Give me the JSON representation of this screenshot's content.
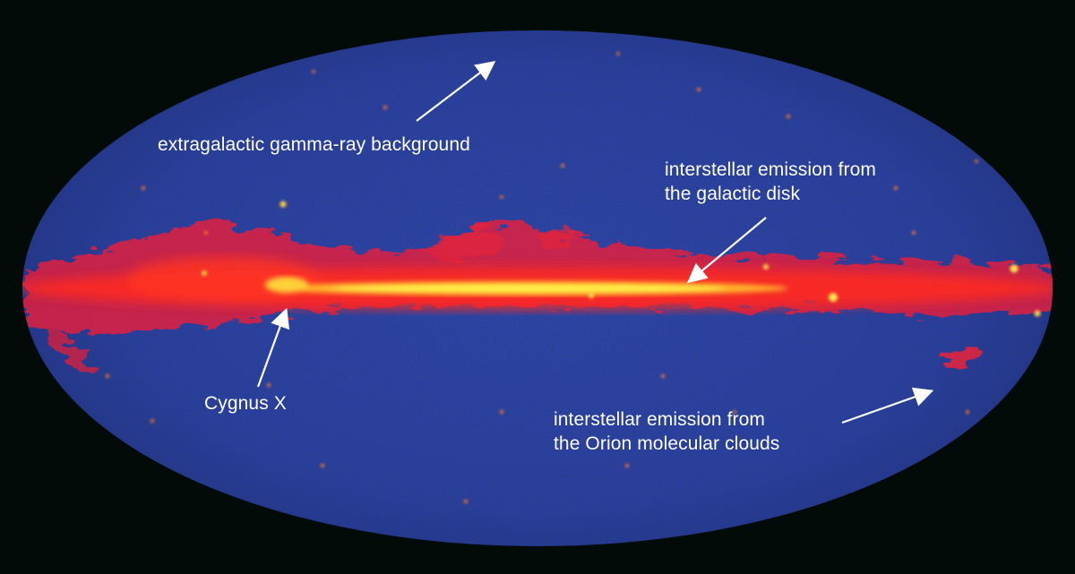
{
  "image": {
    "subject": "Fermi gamma-ray all-sky map",
    "colors": {
      "background": "#020b08",
      "sky_blue": "#2a3fa8",
      "disk_red": "#ff2a22",
      "disk_core": "#ffe53a",
      "label": "#ffffff"
    }
  },
  "annotations": {
    "extragalactic": {
      "text": "extragalactic gamma-ray background"
    },
    "disk": {
      "line1": "interstellar emission from",
      "line2": "the galactic disk"
    },
    "cygnus": {
      "text": "Cygnus X"
    },
    "orion": {
      "line1": "interstellar emission from",
      "line2": "the Orion molecular clouds"
    }
  }
}
